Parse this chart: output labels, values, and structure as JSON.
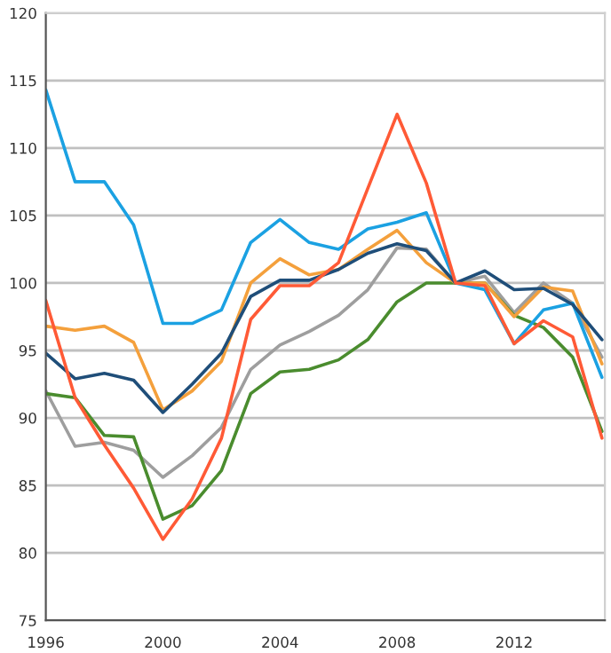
{
  "chart_data": {
    "type": "line",
    "x": [
      1996,
      1997,
      1998,
      1999,
      2000,
      2001,
      2002,
      2003,
      2004,
      2005,
      2006,
      2007,
      2008,
      2009,
      2010,
      2011,
      2012,
      2013,
      2014,
      2015
    ],
    "series": [
      {
        "color": "#9e9e9e",
        "values": [
          92,
          87.9,
          88.2,
          87.6,
          85.6,
          87.2,
          89.3,
          93.6,
          95.4,
          96.4,
          97.6,
          99.5,
          102.6,
          102.5,
          100,
          100.5,
          97.8,
          100,
          98.5,
          94.5
        ]
      },
      {
        "color": "#4a8c2e",
        "values": [
          91.8,
          91.5,
          88.7,
          88.6,
          82.5,
          83.5,
          86.1,
          91.8,
          93.4,
          93.6,
          94.3,
          95.8,
          98.6,
          100,
          100,
          100,
          97.6,
          96.7,
          94.5,
          89
        ]
      },
      {
        "color": "#f4a03c",
        "values": [
          96.8,
          96.5,
          96.8,
          95.6,
          90.6,
          92,
          94.2,
          100,
          101.8,
          100.6,
          101,
          102.5,
          103.9,
          101.5,
          100,
          100,
          97.5,
          99.7,
          99.4,
          94
        ]
      },
      {
        "color": "#1ba1e2",
        "values": [
          114.3,
          107.5,
          107.5,
          104.3,
          97,
          97,
          98,
          103,
          104.7,
          103,
          102.5,
          104,
          104.5,
          105.2,
          100,
          99.5,
          95.5,
          98,
          98.5,
          93
        ]
      },
      {
        "color": "#1f4e79",
        "values": [
          94.8,
          92.9,
          93.3,
          92.8,
          90.4,
          92.5,
          94.8,
          99,
          100.2,
          100.2,
          101,
          102.2,
          102.9,
          102.4,
          100,
          100.9,
          99.5,
          99.6,
          98.4,
          95.8
        ]
      },
      {
        "color": "#ff5a36",
        "values": [
          98.7,
          91.5,
          88,
          84.8,
          81,
          84,
          88.5,
          97.3,
          99.8,
          99.8,
          101.5,
          107,
          112.5,
          107.4,
          100,
          99.8,
          95.5,
          97.2,
          96,
          88.5
        ]
      }
    ],
    "xlim": [
      1996,
      2015.1
    ],
    "xticks": [
      1996,
      2000,
      2004,
      2008,
      2012
    ],
    "ylim": [
      75,
      120
    ],
    "yticks": [
      75,
      80,
      85,
      90,
      95,
      100,
      105,
      110,
      115,
      120
    ],
    "grid": "y",
    "marker": "none",
    "line_style": "solid"
  }
}
